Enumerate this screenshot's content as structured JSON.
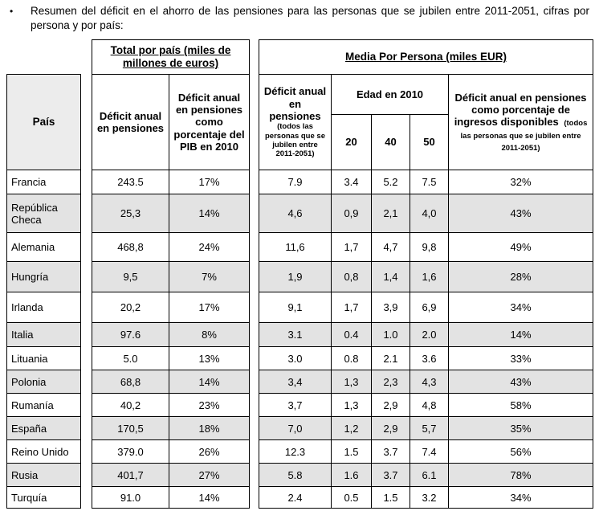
{
  "intro": {
    "bullet": "•",
    "text": "Resumen del déficit en el ahorro de las pensiones para las personas que se jubilen entre 2011-2051, cifras por persona y por país:"
  },
  "table": {
    "group_headers": {
      "left": "Total por país (miles de millones de euros)",
      "right": "Media Por Persona (miles EUR)"
    },
    "headers": {
      "country": "País",
      "annual_deficit": "Déficit anual en pensiones",
      "deficit_pct_gdp": "Déficit anual en pensiones como porcentaje del PIB en 2010",
      "per_person_deficit_main": "Déficit anual en pensiones",
      "per_person_deficit_note": "(todos las personas que se jubilen entre 2011-2051)",
      "age_group": "Edad en 2010",
      "age_20": "20",
      "age_40": "40",
      "age_50": "50",
      "deficit_pct_income_main": "Déficit anual en pensiones como porcentaje de ingresos disponibles",
      "deficit_pct_income_note": "(todos las personas que se jubilen entre 2011-2051)"
    },
    "rows": [
      {
        "country": "Francia",
        "values": [
          "243.5",
          "17%",
          "7.9",
          "3.4",
          "5.2",
          "7.5",
          "32%"
        ]
      },
      {
        "country": "República Checa",
        "values": [
          "25,3",
          "14%",
          "4,6",
          "0,9",
          "2,1",
          "4,0",
          "43%"
        ]
      },
      {
        "country": "Alemania",
        "values": [
          "468,8",
          "24%",
          "11,6",
          "1,7",
          "4,7",
          "9,8",
          "49%"
        ]
      },
      {
        "country": "Hungría",
        "values": [
          "9,5",
          "7%",
          "1,9",
          "0,8",
          "1,4",
          "1,6",
          "28%"
        ]
      },
      {
        "country": "Irlanda",
        "values": [
          "20,2",
          "17%",
          "9,1",
          "1,7",
          "3,9",
          "6,9",
          "34%"
        ]
      },
      {
        "country": "Italia",
        "values": [
          "97.6",
          "8%",
          "3.1",
          "0.4",
          "1.0",
          "2.0",
          "14%"
        ]
      },
      {
        "country": "Lituania",
        "values": [
          "5.0",
          "13%",
          "3.0",
          "0.8",
          "2.1",
          "3.6",
          "33%"
        ]
      },
      {
        "country": "Polonia",
        "values": [
          "68,8",
          "14%",
          "3,4",
          "1,3",
          "2,3",
          "4,3",
          "43%"
        ]
      },
      {
        "country": "Rumanía",
        "values": [
          "40,2",
          "23%",
          "3,7",
          "1,3",
          "2,9",
          "4,8",
          "58%"
        ]
      },
      {
        "country": "España",
        "values": [
          "170,5",
          "18%",
          "7,0",
          "1,2",
          "2,9",
          "5,7",
          "35%"
        ]
      },
      {
        "country": "Reino Unido",
        "values": [
          "379.0",
          "26%",
          "12.3",
          "1.5",
          "3.7",
          "7.4",
          "56%"
        ]
      },
      {
        "country": "Rusia",
        "values": [
          "401,7",
          "27%",
          "5.8",
          "1.6",
          "3.7",
          "6.1",
          "78%"
        ]
      },
      {
        "country": "Turquía",
        "values": [
          "91.0",
          "14%",
          "2.4",
          "0.5",
          "1.5",
          "3.2",
          "34%"
        ]
      }
    ]
  }
}
